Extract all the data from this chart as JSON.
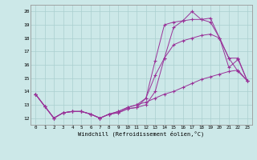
{
  "background_color": "#cce8e8",
  "line_color": "#993399",
  "grid_color": "#aacfcf",
  "xlabel": "Windchill (Refroidissement éolien,°C)",
  "xlim": [
    -0.5,
    23.5
  ],
  "ylim": [
    11.5,
    20.5
  ],
  "yticks": [
    12,
    13,
    14,
    15,
    16,
    17,
    18,
    19,
    20
  ],
  "xticks": [
    0,
    1,
    2,
    3,
    4,
    5,
    6,
    7,
    8,
    9,
    10,
    11,
    12,
    13,
    14,
    15,
    16,
    17,
    18,
    19,
    20,
    21,
    22,
    23
  ],
  "series": [
    {
      "x": [
        0,
        1,
        2,
        3,
        4,
        5,
        6,
        7,
        8,
        9,
        10,
        11,
        12,
        13,
        14,
        15,
        16,
        17,
        18,
        19,
        20,
        21,
        22,
        23
      ],
      "y": [
        13.8,
        12.9,
        12.0,
        12.4,
        12.5,
        12.5,
        12.3,
        12.0,
        12.3,
        12.4,
        12.7,
        12.8,
        13.0,
        14.0,
        16.5,
        18.8,
        19.3,
        20.0,
        19.4,
        19.5,
        18.0,
        16.5,
        15.5,
        14.8
      ]
    },
    {
      "x": [
        0,
        1,
        2,
        3,
        4,
        5,
        6,
        7,
        8,
        9,
        10,
        11,
        12,
        13,
        14,
        15,
        16,
        17,
        18,
        19,
        20,
        21,
        22,
        23
      ],
      "y": [
        13.8,
        12.9,
        12.0,
        12.4,
        12.5,
        12.5,
        12.3,
        12.0,
        12.3,
        12.4,
        12.7,
        12.8,
        13.5,
        16.3,
        19.0,
        19.2,
        19.3,
        19.4,
        19.4,
        19.2,
        18.0,
        15.8,
        16.4,
        14.8
      ]
    },
    {
      "x": [
        0,
        1,
        2,
        3,
        4,
        5,
        6,
        7,
        8,
        9,
        10,
        11,
        12,
        13,
        14,
        15,
        16,
        17,
        18,
        19,
        20,
        21,
        22,
        23
      ],
      "y": [
        13.8,
        12.9,
        12.0,
        12.4,
        12.5,
        12.5,
        12.3,
        12.0,
        12.3,
        12.5,
        12.8,
        13.0,
        13.5,
        15.2,
        16.5,
        17.5,
        17.8,
        18.0,
        18.2,
        18.3,
        18.0,
        16.5,
        16.5,
        14.8
      ]
    },
    {
      "x": [
        0,
        1,
        2,
        3,
        4,
        5,
        6,
        7,
        8,
        9,
        10,
        11,
        12,
        13,
        14,
        15,
        16,
        17,
        18,
        19,
        20,
        21,
        22,
        23
      ],
      "y": [
        13.8,
        12.9,
        12.0,
        12.4,
        12.5,
        12.5,
        12.3,
        12.0,
        12.3,
        12.5,
        12.8,
        13.0,
        13.2,
        13.5,
        13.8,
        14.0,
        14.3,
        14.6,
        14.9,
        15.1,
        15.3,
        15.5,
        15.6,
        14.8
      ]
    }
  ]
}
